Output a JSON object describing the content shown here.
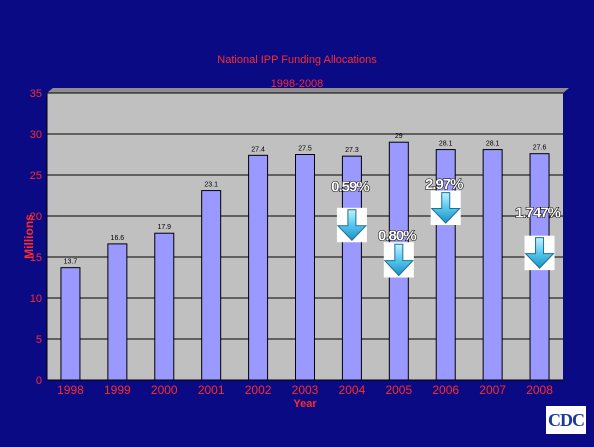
{
  "slide": {
    "background": "#0a0a84",
    "logo_text": "CDC"
  },
  "chart_data": {
    "type": "bar",
    "title": "National IPP Funding Allocations",
    "subtitle": "1998-2008",
    "xlabel": "Year",
    "ylabel": "Millions",
    "categories": [
      "1998",
      "1999",
      "2000",
      "2001",
      "2002",
      "2003",
      "2004",
      "2005",
      "2006",
      "2007",
      "2008"
    ],
    "values": [
      13.7,
      16.6,
      17.9,
      23.1,
      27.4,
      27.5,
      27.3,
      29,
      28.1,
      28.1,
      27.6
    ],
    "data_labels": [
      "13.7",
      "16.6",
      "17.9",
      "23.1",
      "27.4",
      "27.5",
      "27.3",
      "29",
      "28.1",
      "28.1",
      "27.6"
    ],
    "yticks": [
      0,
      5,
      10,
      15,
      20,
      25,
      30,
      35
    ],
    "ylim": [
      0,
      35
    ],
    "grid": true,
    "bar_color": "#9999ff",
    "plot_background": "#c0c0c0",
    "annotations": [
      {
        "category": "2004",
        "text": "0.59%",
        "direction": "down",
        "label_y": 23,
        "arrow_top": 21,
        "arrow_bottom": 16.8
      },
      {
        "category": "2005",
        "text": "0.80%",
        "direction": "down",
        "label_y": 17,
        "arrow_top": 16.8,
        "arrow_bottom": 12.5
      },
      {
        "category": "2006",
        "text": "2.97%",
        "direction": "down",
        "label_y": 23.3,
        "arrow_top": 23.1,
        "arrow_bottom": 18.9
      },
      {
        "category": "2008",
        "text": "1.747%",
        "direction": "down",
        "label_y": 19.8,
        "arrow_top": 17.6,
        "arrow_bottom": 13.4
      }
    ]
  }
}
